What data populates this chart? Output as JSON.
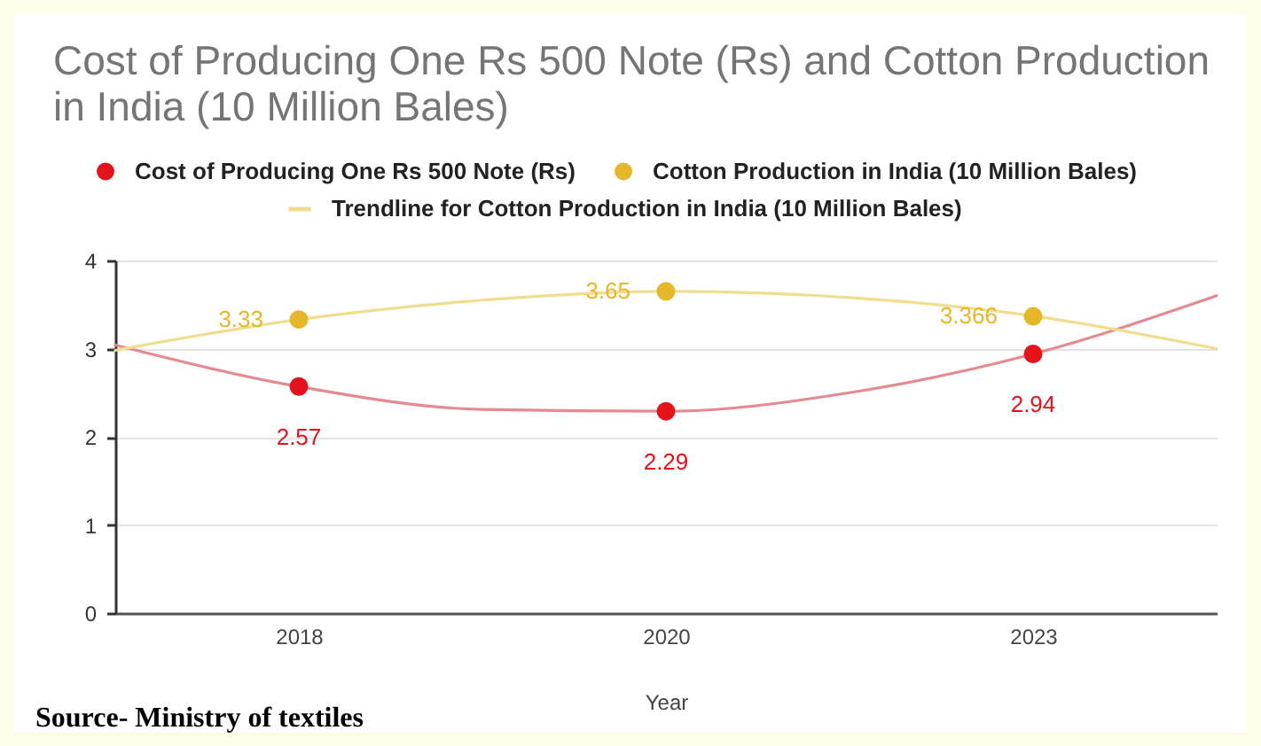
{
  "chart_data": {
    "type": "scatter",
    "title": "Cost of Producing One Rs 500 Note (Rs) and Cotton Production in India (10 Million Bales)",
    "xlabel": "Year",
    "annotations": [
      "Source- Ministry of textiles"
    ],
    "categories": [
      null,
      "2018",
      null,
      "2020",
      null,
      "2023",
      null
    ],
    "ylim": [
      0,
      4
    ],
    "yticks": [
      0,
      1,
      2,
      3,
      4
    ],
    "grid": "y",
    "legend": "top",
    "marker": "circle",
    "series": [
      {
        "name": "Cost of Producing One Rs 500 Note (Rs)",
        "color": "#e5121b",
        "values": [
          null,
          2.57,
          null,
          2.29,
          null,
          2.94,
          null
        ],
        "value_labels": [
          null,
          "2.57",
          null,
          "2.29",
          null,
          "2.94",
          null
        ]
      },
      {
        "name": "Cotton Production in India (10 Million Bales)",
        "color": "#e6b829",
        "values": [
          null,
          3.33,
          null,
          3.65,
          null,
          3.366,
          null
        ],
        "value_labels": [
          null,
          "3.33",
          null,
          "3.65",
          null,
          "3.366",
          null
        ]
      },
      {
        "type": "line",
        "marker": "none",
        "color": "#e48a91",
        "values": [
          3.04,
          2.57,
          2.31,
          2.29,
          2.5,
          2.94,
          3.6
        ]
      },
      {
        "name": "Trendline for Cotton Production in India (10 Million Bales)",
        "type": "line",
        "marker": "none",
        "color": "#f1dd8e",
        "values": [
          2.98,
          3.33,
          3.55,
          3.65,
          3.58,
          3.37,
          3.0
        ]
      }
    ]
  }
}
